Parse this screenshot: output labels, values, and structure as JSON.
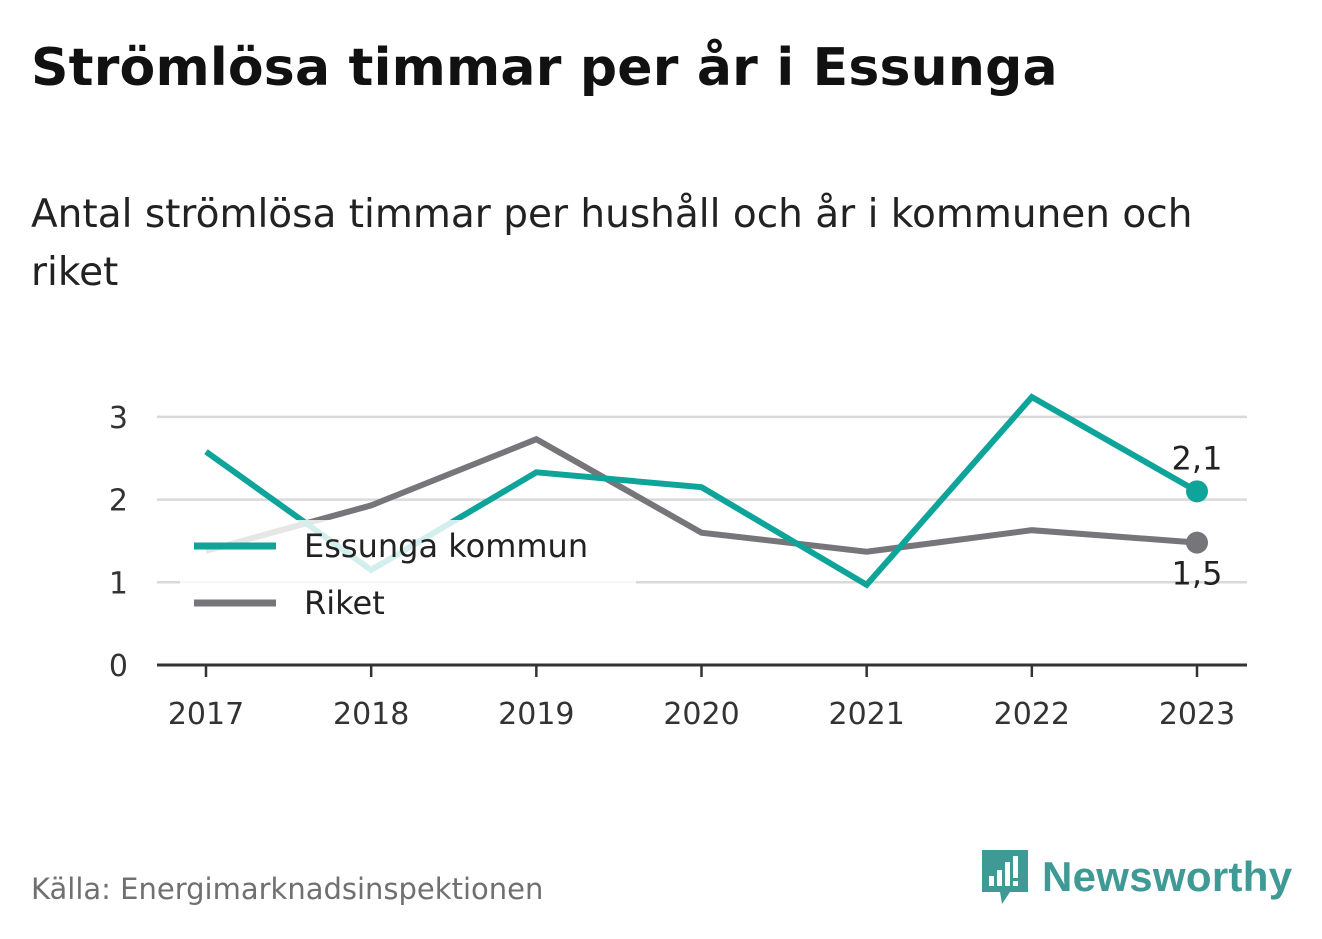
{
  "header": {
    "title": "Strömlösa timmar per år i Essunga",
    "subtitle": "Antal strömlösa timmar per hushåll och år i kommunen och riket"
  },
  "footer": {
    "source": "Källa: Energimarknadsinspektionen",
    "brand": "Newsworthy",
    "brand_icon": "bar-chart-speech-bubble-icon"
  },
  "colors": {
    "essunga": "#0fa49a",
    "riket": "#76757a",
    "grid": "#d9d9d9",
    "axis": "#333333",
    "brand": "#3f9a96"
  },
  "chart_data": {
    "type": "line",
    "title": "Strömlösa timmar per år i Essunga",
    "subtitle": "Antal strömlösa timmar per hushåll och år i kommunen och riket",
    "xlabel": "",
    "ylabel": "",
    "categories": [
      "2017",
      "2018",
      "2019",
      "2020",
      "2021",
      "2022",
      "2023"
    ],
    "ylim": [
      0,
      3.2
    ],
    "yticks": [
      0,
      1,
      2,
      3
    ],
    "grid": "horizontal",
    "legend": "left-middle",
    "series": [
      {
        "name": "Essunga kommun",
        "values": [
          2.58,
          1.15,
          2.33,
          2.15,
          0.97,
          3.24,
          2.1
        ],
        "end_label": "2,1"
      },
      {
        "name": "Riket",
        "values": [
          1.38,
          1.93,
          2.73,
          1.6,
          1.37,
          1.63,
          1.48
        ],
        "end_label": "1,5"
      }
    ]
  }
}
